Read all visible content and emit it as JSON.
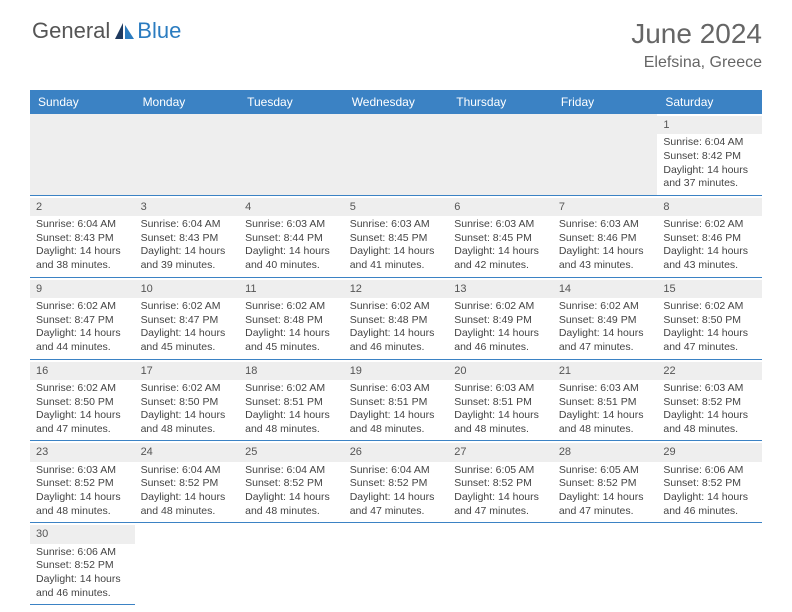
{
  "brand": {
    "part1": "General",
    "part2": "Blue"
  },
  "title": {
    "month": "June 2024",
    "location": "Elefsina, Greece"
  },
  "colors": {
    "header_bg": "#3b82c4",
    "header_text": "#ffffff",
    "daynum_bg": "#eeeeee",
    "border": "#3b82c4",
    "text": "#444444",
    "brand_blue": "#2b7cc0"
  },
  "weekdays": [
    "Sunday",
    "Monday",
    "Tuesday",
    "Wednesday",
    "Thursday",
    "Friday",
    "Saturday"
  ],
  "days": {
    "1": {
      "sunrise": "Sunrise: 6:04 AM",
      "sunset": "Sunset: 8:42 PM",
      "daylight1": "Daylight: 14 hours",
      "daylight2": "and 37 minutes."
    },
    "2": {
      "sunrise": "Sunrise: 6:04 AM",
      "sunset": "Sunset: 8:43 PM",
      "daylight1": "Daylight: 14 hours",
      "daylight2": "and 38 minutes."
    },
    "3": {
      "sunrise": "Sunrise: 6:04 AM",
      "sunset": "Sunset: 8:43 PM",
      "daylight1": "Daylight: 14 hours",
      "daylight2": "and 39 minutes."
    },
    "4": {
      "sunrise": "Sunrise: 6:03 AM",
      "sunset": "Sunset: 8:44 PM",
      "daylight1": "Daylight: 14 hours",
      "daylight2": "and 40 minutes."
    },
    "5": {
      "sunrise": "Sunrise: 6:03 AM",
      "sunset": "Sunset: 8:45 PM",
      "daylight1": "Daylight: 14 hours",
      "daylight2": "and 41 minutes."
    },
    "6": {
      "sunrise": "Sunrise: 6:03 AM",
      "sunset": "Sunset: 8:45 PM",
      "daylight1": "Daylight: 14 hours",
      "daylight2": "and 42 minutes."
    },
    "7": {
      "sunrise": "Sunrise: 6:03 AM",
      "sunset": "Sunset: 8:46 PM",
      "daylight1": "Daylight: 14 hours",
      "daylight2": "and 43 minutes."
    },
    "8": {
      "sunrise": "Sunrise: 6:02 AM",
      "sunset": "Sunset: 8:46 PM",
      "daylight1": "Daylight: 14 hours",
      "daylight2": "and 43 minutes."
    },
    "9": {
      "sunrise": "Sunrise: 6:02 AM",
      "sunset": "Sunset: 8:47 PM",
      "daylight1": "Daylight: 14 hours",
      "daylight2": "and 44 minutes."
    },
    "10": {
      "sunrise": "Sunrise: 6:02 AM",
      "sunset": "Sunset: 8:47 PM",
      "daylight1": "Daylight: 14 hours",
      "daylight2": "and 45 minutes."
    },
    "11": {
      "sunrise": "Sunrise: 6:02 AM",
      "sunset": "Sunset: 8:48 PM",
      "daylight1": "Daylight: 14 hours",
      "daylight2": "and 45 minutes."
    },
    "12": {
      "sunrise": "Sunrise: 6:02 AM",
      "sunset": "Sunset: 8:48 PM",
      "daylight1": "Daylight: 14 hours",
      "daylight2": "and 46 minutes."
    },
    "13": {
      "sunrise": "Sunrise: 6:02 AM",
      "sunset": "Sunset: 8:49 PM",
      "daylight1": "Daylight: 14 hours",
      "daylight2": "and 46 minutes."
    },
    "14": {
      "sunrise": "Sunrise: 6:02 AM",
      "sunset": "Sunset: 8:49 PM",
      "daylight1": "Daylight: 14 hours",
      "daylight2": "and 47 minutes."
    },
    "15": {
      "sunrise": "Sunrise: 6:02 AM",
      "sunset": "Sunset: 8:50 PM",
      "daylight1": "Daylight: 14 hours",
      "daylight2": "and 47 minutes."
    },
    "16": {
      "sunrise": "Sunrise: 6:02 AM",
      "sunset": "Sunset: 8:50 PM",
      "daylight1": "Daylight: 14 hours",
      "daylight2": "and 47 minutes."
    },
    "17": {
      "sunrise": "Sunrise: 6:02 AM",
      "sunset": "Sunset: 8:50 PM",
      "daylight1": "Daylight: 14 hours",
      "daylight2": "and 48 minutes."
    },
    "18": {
      "sunrise": "Sunrise: 6:02 AM",
      "sunset": "Sunset: 8:51 PM",
      "daylight1": "Daylight: 14 hours",
      "daylight2": "and 48 minutes."
    },
    "19": {
      "sunrise": "Sunrise: 6:03 AM",
      "sunset": "Sunset: 8:51 PM",
      "daylight1": "Daylight: 14 hours",
      "daylight2": "and 48 minutes."
    },
    "20": {
      "sunrise": "Sunrise: 6:03 AM",
      "sunset": "Sunset: 8:51 PM",
      "daylight1": "Daylight: 14 hours",
      "daylight2": "and 48 minutes."
    },
    "21": {
      "sunrise": "Sunrise: 6:03 AM",
      "sunset": "Sunset: 8:51 PM",
      "daylight1": "Daylight: 14 hours",
      "daylight2": "and 48 minutes."
    },
    "22": {
      "sunrise": "Sunrise: 6:03 AM",
      "sunset": "Sunset: 8:52 PM",
      "daylight1": "Daylight: 14 hours",
      "daylight2": "and 48 minutes."
    },
    "23": {
      "sunrise": "Sunrise: 6:03 AM",
      "sunset": "Sunset: 8:52 PM",
      "daylight1": "Daylight: 14 hours",
      "daylight2": "and 48 minutes."
    },
    "24": {
      "sunrise": "Sunrise: 6:04 AM",
      "sunset": "Sunset: 8:52 PM",
      "daylight1": "Daylight: 14 hours",
      "daylight2": "and 48 minutes."
    },
    "25": {
      "sunrise": "Sunrise: 6:04 AM",
      "sunset": "Sunset: 8:52 PM",
      "daylight1": "Daylight: 14 hours",
      "daylight2": "and 48 minutes."
    },
    "26": {
      "sunrise": "Sunrise: 6:04 AM",
      "sunset": "Sunset: 8:52 PM",
      "daylight1": "Daylight: 14 hours",
      "daylight2": "and 47 minutes."
    },
    "27": {
      "sunrise": "Sunrise: 6:05 AM",
      "sunset": "Sunset: 8:52 PM",
      "daylight1": "Daylight: 14 hours",
      "daylight2": "and 47 minutes."
    },
    "28": {
      "sunrise": "Sunrise: 6:05 AM",
      "sunset": "Sunset: 8:52 PM",
      "daylight1": "Daylight: 14 hours",
      "daylight2": "and 47 minutes."
    },
    "29": {
      "sunrise": "Sunrise: 6:06 AM",
      "sunset": "Sunset: 8:52 PM",
      "daylight1": "Daylight: 14 hours",
      "daylight2": "and 46 minutes."
    },
    "30": {
      "sunrise": "Sunrise: 6:06 AM",
      "sunset": "Sunset: 8:52 PM",
      "daylight1": "Daylight: 14 hours",
      "daylight2": "and 46 minutes."
    }
  },
  "layout": {
    "first_weekday_index": 6,
    "num_days": 30
  }
}
